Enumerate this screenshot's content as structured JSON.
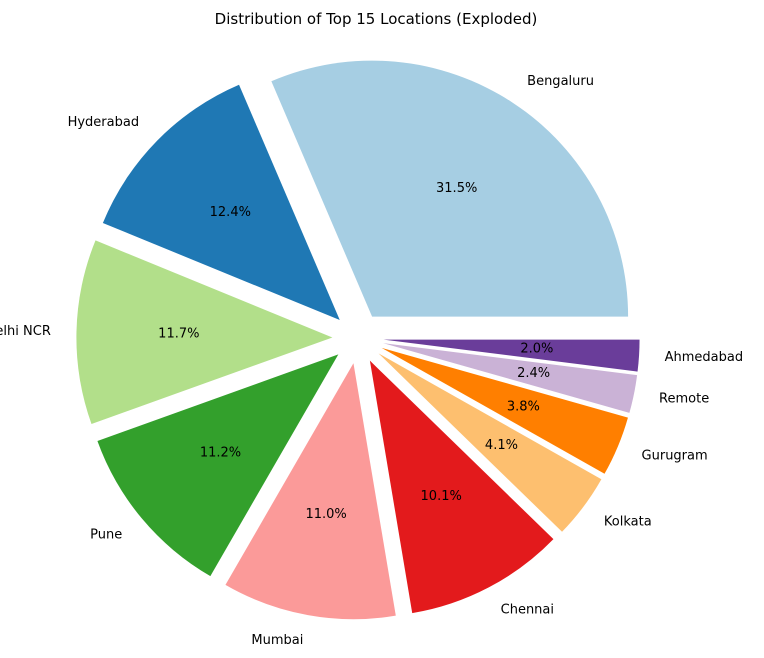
{
  "chart_data": {
    "type": "pie",
    "title": "Distribution of Top 15 Locations (Exploded)",
    "exploded": true,
    "start": "right, counter-clockwise",
    "slices": [
      {
        "label": "Bengaluru",
        "value": 31.5,
        "pct_label": "31.5%",
        "color": "#a6cee3"
      },
      {
        "label": "Hyderabad",
        "value": 12.4,
        "pct_label": "12.4%",
        "color": "#1f78b4"
      },
      {
        "label": "Delhi NCR",
        "value": 11.7,
        "pct_label": "11.7%",
        "color": "#b2df8a"
      },
      {
        "label": "Pune",
        "value": 11.2,
        "pct_label": "11.2%",
        "color": "#33a02c"
      },
      {
        "label": "Mumbai",
        "value": 11.0,
        "pct_label": "11.0%",
        "color": "#fb9a99"
      },
      {
        "label": "Chennai",
        "value": 10.1,
        "pct_label": "10.1%",
        "color": "#e31a1c"
      },
      {
        "label": "Kolkata",
        "value": 4.1,
        "pct_label": "4.1%",
        "color": "#fdbf6f"
      },
      {
        "label": "Gurugram",
        "value": 3.8,
        "pct_label": "3.8%",
        "color": "#ff7f00"
      },
      {
        "label": "Remote",
        "value": 2.4,
        "pct_label": "2.4%",
        "color": "#cab2d6"
      },
      {
        "label": "Ahmedabad",
        "value": 2.0,
        "pct_label": "2.0%",
        "color": "#6a3d9a"
      }
    ]
  }
}
